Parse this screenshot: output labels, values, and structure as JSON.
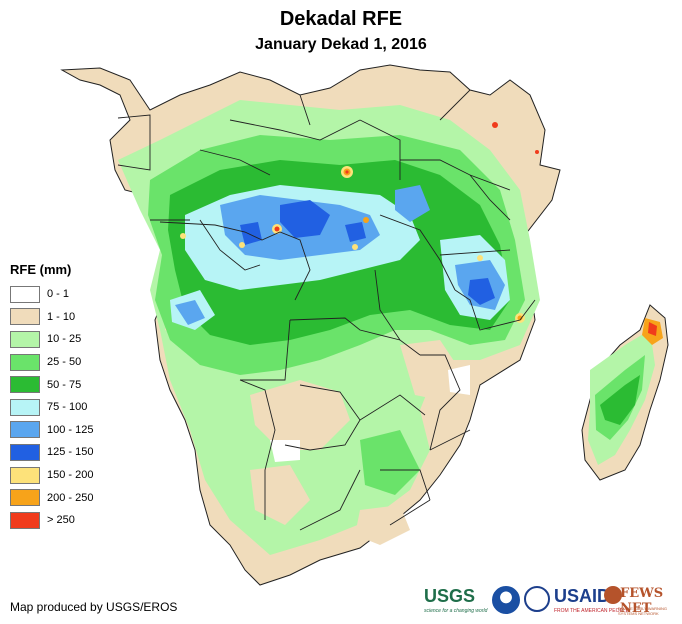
{
  "title": "Dekadal RFE",
  "subtitle": "January Dekad 1, 2016",
  "legend": {
    "title": "RFE (mm)",
    "items": [
      {
        "label": "0 - 1",
        "color": "#ffffff"
      },
      {
        "label": "1 - 10",
        "color": "#f0dcbb"
      },
      {
        "label": "10 - 25",
        "color": "#b4f5a8"
      },
      {
        "label": "25 - 50",
        "color": "#6ae36a"
      },
      {
        "label": "50 - 75",
        "color": "#2bbb33"
      },
      {
        "label": "75 - 100",
        "color": "#b7f4f6"
      },
      {
        "label": "100 - 125",
        "color": "#5aa6ef"
      },
      {
        "label": "125 - 150",
        "color": "#2160e2"
      },
      {
        "label": "150 - 200",
        "color": "#fde27a"
      },
      {
        "label": "200 - 250",
        "color": "#f7a31a"
      },
      {
        "label": "> 250",
        "color": "#f03b1c"
      }
    ]
  },
  "credit": "Map produced by USGS/EROS",
  "logos": {
    "usgs": "USGS",
    "usgs_tagline": "science for a changing world",
    "usaid": "USAID",
    "usaid_tagline": "FROM THE AMERICAN PEOPLE",
    "fews": "FEWS NET",
    "fews_tagline": "FAMINE EARLY WARNING SYSTEMS NETWORK"
  }
}
